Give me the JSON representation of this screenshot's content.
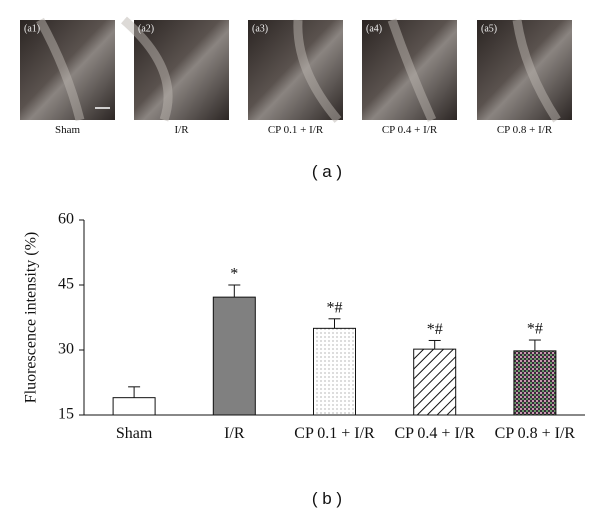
{
  "images": [
    {
      "tag": "(a1)",
      "caption": "Sham"
    },
    {
      "tag": "(a2)",
      "caption": "I/R"
    },
    {
      "tag": "(a3)",
      "caption": "CP 0.1 + I/R"
    },
    {
      "tag": "(a4)",
      "caption": "CP 0.4 + I/R"
    },
    {
      "tag": "(a5)",
      "caption": "CP 0.8 + I/R"
    }
  ],
  "panel_labels": [
    "( a )",
    "( b )"
  ],
  "chart_data": {
    "type": "bar",
    "ylabel": "Fluorescence intensity (%)",
    "categories": [
      "Sham",
      "I/R",
      "CP 0.1 + I/R",
      "CP 0.4 + I/R",
      "CP 0.8 + I/R"
    ],
    "values": [
      19,
      42.2,
      35,
      30.2,
      29.8
    ],
    "errors": [
      2.5,
      2.8,
      2.2,
      2,
      2.5
    ],
    "annotations": [
      null,
      "*",
      "*#",
      "*#",
      "*#"
    ],
    "fills": [
      "white",
      "gray",
      "dots",
      "hatch",
      "grid"
    ],
    "ylim": [
      15,
      60
    ],
    "yticks": [
      15,
      30,
      45,
      60
    ]
  }
}
